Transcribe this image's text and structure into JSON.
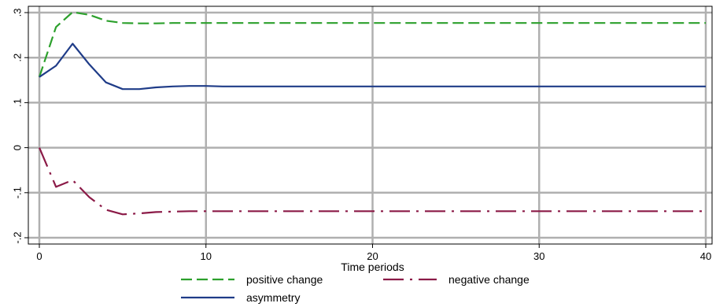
{
  "chart_data": {
    "type": "line",
    "title": "",
    "xlabel": "Time periods",
    "ylabel": "",
    "xlim": [
      0,
      40
    ],
    "ylim": [
      -0.2,
      0.3
    ],
    "xticks": [
      0,
      10,
      20,
      30,
      40
    ],
    "xtick_labels": [
      "0",
      "10",
      "20",
      "30",
      "40"
    ],
    "yticks": [
      -0.2,
      -0.1,
      0,
      0.1,
      0.2,
      0.3
    ],
    "ytick_labels": [
      "-.2",
      "-.1",
      "0",
      ".1",
      ".2",
      ".3"
    ],
    "grid": true,
    "legend_position": "bottom",
    "x": [
      0,
      1,
      2,
      3,
      4,
      5,
      6,
      7,
      8,
      9,
      10,
      11,
      12,
      13,
      14,
      15,
      16,
      17,
      18,
      19,
      20,
      21,
      22,
      23,
      24,
      25,
      26,
      27,
      28,
      29,
      30,
      31,
      32,
      33,
      34,
      35,
      36,
      37,
      38,
      39,
      40
    ],
    "series": [
      {
        "name": "positive change",
        "color": "#2ca02c",
        "style": "dashed",
        "values": [
          0.157,
          0.268,
          0.301,
          0.295,
          0.282,
          0.277,
          0.276,
          0.276,
          0.277,
          0.277,
          0.277,
          0.277,
          0.277,
          0.277,
          0.277,
          0.277,
          0.277,
          0.277,
          0.277,
          0.277,
          0.277,
          0.277,
          0.277,
          0.277,
          0.277,
          0.277,
          0.277,
          0.277,
          0.277,
          0.277,
          0.277,
          0.277,
          0.277,
          0.277,
          0.277,
          0.277,
          0.277,
          0.277,
          0.277,
          0.277,
          0.277
        ]
      },
      {
        "name": "negative change",
        "color": "#8b1a47",
        "style": "longdash-dot",
        "values": [
          0.0,
          -0.087,
          -0.072,
          -0.11,
          -0.138,
          -0.148,
          -0.146,
          -0.143,
          -0.142,
          -0.141,
          -0.141,
          -0.141,
          -0.141,
          -0.141,
          -0.141,
          -0.141,
          -0.141,
          -0.141,
          -0.141,
          -0.141,
          -0.141,
          -0.141,
          -0.141,
          -0.141,
          -0.141,
          -0.141,
          -0.141,
          -0.141,
          -0.141,
          -0.141,
          -0.141,
          -0.141,
          -0.141,
          -0.141,
          -0.141,
          -0.141,
          -0.141,
          -0.141,
          -0.141,
          -0.141,
          -0.141
        ]
      },
      {
        "name": "asymmetry",
        "color": "#1f3c88",
        "style": "solid",
        "values": [
          0.157,
          0.182,
          0.231,
          0.185,
          0.145,
          0.13,
          0.13,
          0.134,
          0.136,
          0.137,
          0.137,
          0.136,
          0.136,
          0.136,
          0.136,
          0.136,
          0.136,
          0.136,
          0.136,
          0.136,
          0.136,
          0.136,
          0.136,
          0.136,
          0.136,
          0.136,
          0.136,
          0.136,
          0.136,
          0.136,
          0.136,
          0.136,
          0.136,
          0.136,
          0.136,
          0.136,
          0.136,
          0.136,
          0.136,
          0.136,
          0.136
        ]
      }
    ]
  }
}
